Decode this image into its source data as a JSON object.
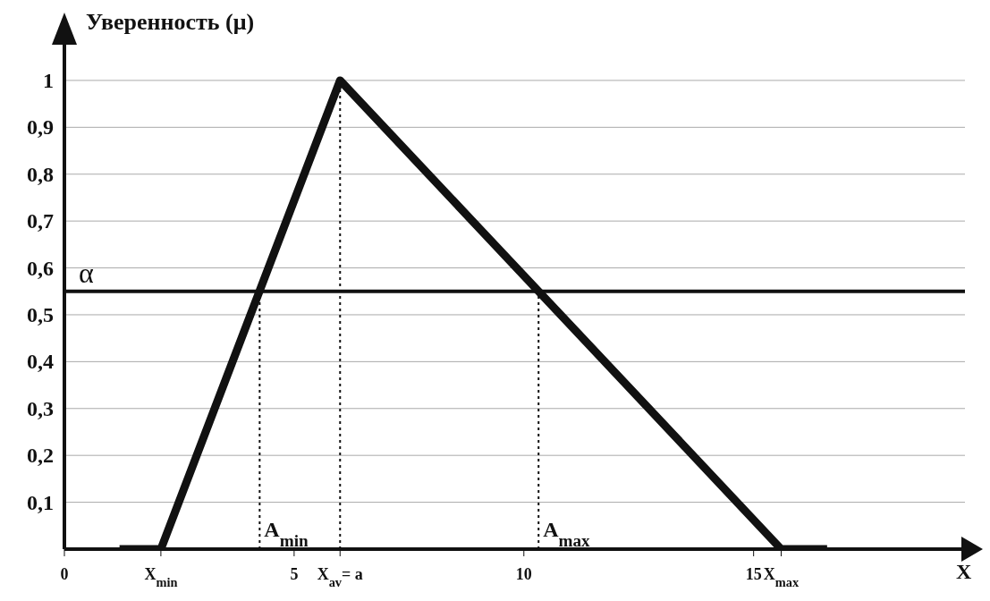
{
  "chart_data": {
    "type": "line",
    "xlabel": "X",
    "ylabel": "Уверенность (μ)",
    "xlim": [
      0,
      19.6
    ],
    "ylim": [
      0,
      1.08
    ],
    "xticks": [
      0,
      {
        "value": 2.1,
        "label": "X$_{min}$"
      },
      5,
      {
        "value": 6,
        "label": "X$_{av}$= a"
      },
      10,
      15,
      {
        "value": 15.6,
        "label": "X$_{max}$"
      }
    ],
    "yticks": [
      {
        "value": 0.1,
        "label": "0,1"
      },
      {
        "value": 0.2,
        "label": "0,2"
      },
      {
        "value": 0.3,
        "label": "0,3"
      },
      {
        "value": 0.4,
        "label": "0,4"
      },
      {
        "value": 0.5,
        "label": "0,5"
      },
      {
        "value": 0.6,
        "label": "0,6"
      },
      {
        "value": 0.7,
        "label": "0,7"
      },
      {
        "value": 0.8,
        "label": "0,8"
      },
      {
        "value": 0.9,
        "label": "0,9"
      },
      {
        "value": 1,
        "label": "1"
      }
    ],
    "grid": "y",
    "marker": "none",
    "series": [
      {
        "color": "#111111",
        "x": [
          1.2,
          2.1,
          6,
          15.6,
          16.6
        ],
        "values": [
          0,
          0,
          1,
          0,
          0
        ]
      },
      {
        "color": "#111111",
        "type": "line",
        "line_style": "dotted",
        "x": [
          4.25,
          4.25
        ],
        "values": [
          0,
          0.55
        ]
      },
      {
        "color": "#111111",
        "type": "line",
        "line_style": "dotted",
        "x": [
          6,
          6
        ],
        "values": [
          0,
          1
        ]
      },
      {
        "color": "#111111",
        "type": "line",
        "line_style": "dotted",
        "x": [
          10.32,
          10.32
        ],
        "values": [
          0,
          0.55
        ]
      }
    ],
    "ref_lines": [
      {
        "axis": "y",
        "value": 0.55,
        "label": "α",
        "color": "#111111"
      }
    ],
    "annotations": [
      {
        "text": "A$_{min}$",
        "x": 4.25,
        "y": 0
      },
      {
        "text": "A$_{max}$",
        "x": 10.32,
        "y": 0
      }
    ]
  }
}
